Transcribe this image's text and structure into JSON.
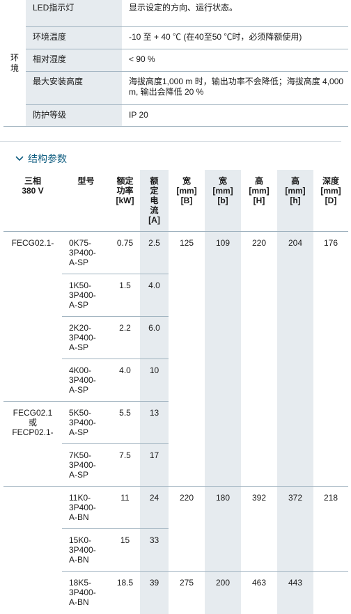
{
  "env": {
    "rows": [
      {
        "key": "LED指示灯",
        "val": "显示设定的方向、运行状态。"
      },
      {
        "key": "环境温度",
        "val": "-10 至 + 40 ℃ (在40至50 ℃时，必须降额使用)"
      },
      {
        "key": "相对湿度",
        "val": "< 90 %"
      },
      {
        "key": "最大安装高度",
        "val": "海拔高度1,000 m 时，输出功率不会降低；海拔高度 4,000 m, 输出会降低 20 %"
      },
      {
        "key": "防护等级",
        "val": "IP 20"
      }
    ],
    "group_label_1": "环",
    "group_label_2": "境"
  },
  "section": {
    "title": "结构参数",
    "icon": "chevron-down-icon"
  },
  "headers": {
    "phase": "三相\n380 V",
    "model": "型号",
    "power": "额定\n功率\n[kW]",
    "current": "额\n定\n电\n流\n[A]",
    "w_big": "宽\n[mm]\n[B]",
    "w_small": "宽\n[mm]\n[b]",
    "h_big": "高\n[mm]\n[H]",
    "h_small": "高\n[mm]\n[h]",
    "depth": "深度\n[mm]\n[D]"
  },
  "series": {
    "s1": "FECG02.1-",
    "s2": "FECG02.1\n或\nFECP02.1-"
  },
  "rows": [
    {
      "model": "0K75-\n3P400-\nA-SP",
      "power": "0.75",
      "current": "2.5"
    },
    {
      "model": "1K50-\n3P400-\nA-SP",
      "power": "1.5",
      "current": "4.0"
    },
    {
      "model": "2K20-\n3P400-\nA-SP",
      "power": "2.2",
      "current": "6.0"
    },
    {
      "model": "4K00-\n3P400-\nA-SP",
      "power": "4.0",
      "current": "10"
    },
    {
      "model": "5K50-\n3P400-\nA-SP",
      "power": "5.5",
      "current": "13"
    },
    {
      "model": "7K50-\n3P400-\nA-SP",
      "power": "7.5",
      "current": "17"
    },
    {
      "model": "11K0-\n3P400-\nA-BN",
      "power": "11",
      "current": "24"
    },
    {
      "model": "15K0-\n3P400-\nA-BN",
      "power": "15",
      "current": "33"
    },
    {
      "model": "18K5-\n3P400-\nA-BN",
      "power": "18.5",
      "current": "39"
    }
  ],
  "dims": [
    {
      "B": "125",
      "b": "109",
      "H": "220",
      "h": "204",
      "D": "176"
    },
    {
      "B": "220",
      "b": "180",
      "H": "392",
      "h": "372",
      "D": "218"
    },
    {
      "B": "275",
      "b": "200",
      "H": "463",
      "h": "443",
      "D": ""
    }
  ]
}
